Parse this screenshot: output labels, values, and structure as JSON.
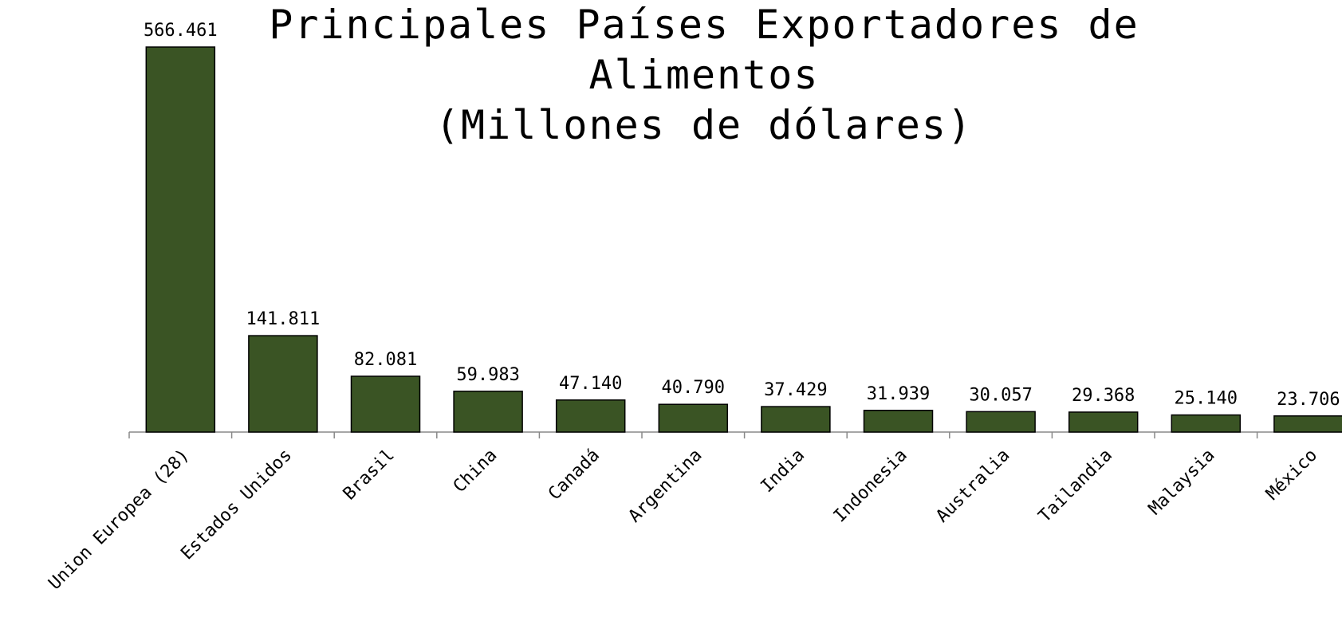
{
  "chart_data": {
    "type": "bar",
    "title": "Principales Países Exportadores de Alimentos",
    "subtitle": "(Millones de dólares)",
    "categories": [
      "Union Europea (28)",
      "Estados Unidos",
      "Brasil",
      "China",
      "Canadá",
      "Argentina",
      "India",
      "Indonesia",
      "Australia",
      "Tailandia",
      "Malaysia",
      "México"
    ],
    "values": [
      566461,
      141811,
      82081,
      59983,
      47140,
      40790,
      37429,
      31939,
      30057,
      29368,
      25140,
      23706
    ],
    "value_labels": [
      "566.461",
      "141.811",
      "82.081",
      "59.983",
      "47.140",
      "40.790",
      "37.429",
      "31.939",
      "30.057",
      "29.368",
      "25.140",
      "23.706"
    ],
    "color": "#3a5424"
  }
}
